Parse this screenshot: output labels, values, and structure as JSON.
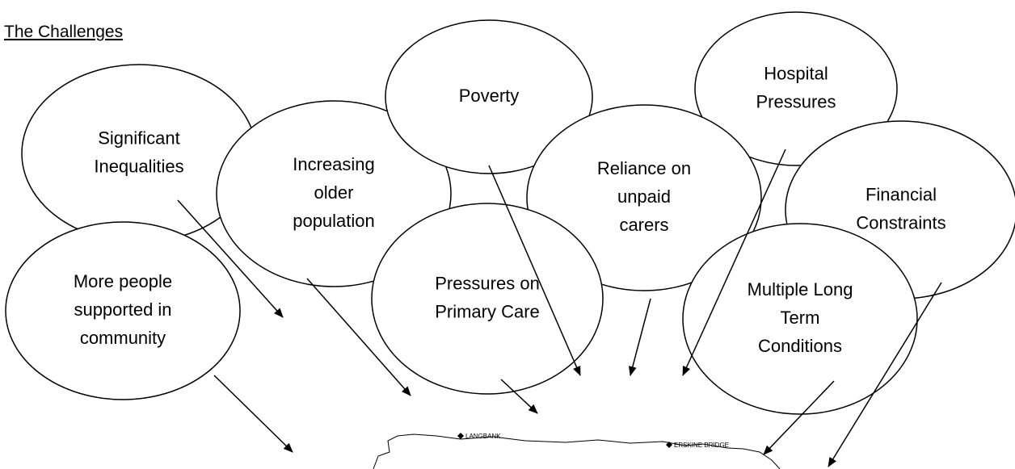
{
  "title": "The Challenges",
  "nodes": [
    {
      "lines": [
        "Significant",
        "Inequalities"
      ]
    },
    {
      "lines": [
        "Increasing",
        "older",
        "population"
      ]
    },
    {
      "lines": [
        "Poverty"
      ]
    },
    {
      "lines": [
        "Hospital",
        "Pressures"
      ]
    },
    {
      "lines": [
        "Reliance on",
        "unpaid",
        "carers"
      ]
    },
    {
      "lines": [
        "Financial",
        "Constraints"
      ]
    },
    {
      "lines": [
        "Pressures on",
        "Primary Care"
      ]
    },
    {
      "lines": [
        "Multiple Long",
        "Term",
        "Conditions"
      ]
    },
    {
      "lines": [
        "More people",
        "supported in",
        "community"
      ]
    }
  ],
  "map_labels": [
    "LANGBANK",
    "ERSKINE BRIDGE"
  ]
}
